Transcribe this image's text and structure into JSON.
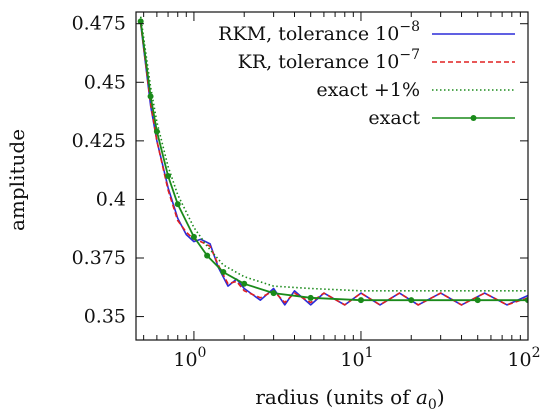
{
  "chart_data": {
    "type": "line",
    "title": "",
    "xlabel_main": "radius (units of ",
    "xlabel_symbol": "a",
    "xlabel_sub": "0",
    "xlabel_close": ")",
    "ylabel": "amplitude",
    "xscale": "log",
    "xlim": [
      0.45,
      100
    ],
    "ylim": [
      0.34,
      0.48
    ],
    "grid": false,
    "legend_position": "top-right",
    "x_ticks": [
      {
        "value": 1,
        "base": "10",
        "exp": "0"
      },
      {
        "value": 10,
        "base": "10",
        "exp": "1"
      },
      {
        "value": 100,
        "base": "10",
        "exp": "2"
      }
    ],
    "y_ticks": [
      {
        "value": 0.35,
        "label": "0.35"
      },
      {
        "value": 0.375,
        "label": "0.375"
      },
      {
        "value": 0.4,
        "label": "0.4"
      },
      {
        "value": 0.425,
        "label": "0.425"
      },
      {
        "value": 0.45,
        "label": "0.45"
      },
      {
        "value": 0.475,
        "label": "0.475"
      }
    ],
    "series": [
      {
        "name_main": "RKM, tolerance 10",
        "name_exp": "−8",
        "color": "#2b2bd9",
        "style": "solid",
        "points": [
          [
            0.48,
            0.475
          ],
          [
            0.55,
            0.44
          ],
          [
            0.6,
            0.425
          ],
          [
            0.7,
            0.405
          ],
          [
            0.8,
            0.392
          ],
          [
            0.9,
            0.385
          ],
          [
            1.0,
            0.382
          ],
          [
            1.1,
            0.383
          ],
          [
            1.25,
            0.381
          ],
          [
            1.4,
            0.371
          ],
          [
            1.6,
            0.363
          ],
          [
            1.8,
            0.366
          ],
          [
            2.0,
            0.362
          ],
          [
            2.5,
            0.357
          ],
          [
            3,
            0.362
          ],
          [
            3.5,
            0.355
          ],
          [
            4,
            0.361
          ],
          [
            5,
            0.355
          ],
          [
            6,
            0.36
          ],
          [
            8,
            0.355
          ],
          [
            10,
            0.36
          ],
          [
            13,
            0.355
          ],
          [
            17,
            0.36
          ],
          [
            22,
            0.355
          ],
          [
            30,
            0.36
          ],
          [
            40,
            0.355
          ],
          [
            55,
            0.36
          ],
          [
            75,
            0.355
          ],
          [
            100,
            0.359
          ]
        ]
      },
      {
        "name_main": "KR, tolerance 10",
        "name_exp": "−7",
        "color": "#e02020",
        "style": "dashed",
        "points": [
          [
            0.48,
            0.475
          ],
          [
            0.55,
            0.441
          ],
          [
            0.6,
            0.425
          ],
          [
            0.7,
            0.404
          ],
          [
            0.8,
            0.391
          ],
          [
            0.9,
            0.386
          ],
          [
            1.0,
            0.383
          ],
          [
            1.1,
            0.382
          ],
          [
            1.25,
            0.38
          ],
          [
            1.4,
            0.372
          ],
          [
            1.6,
            0.364
          ],
          [
            1.8,
            0.365
          ],
          [
            2.0,
            0.361
          ],
          [
            2.5,
            0.358
          ],
          [
            3,
            0.361
          ],
          [
            3.5,
            0.356
          ],
          [
            4,
            0.36
          ],
          [
            5,
            0.356
          ],
          [
            6,
            0.36
          ],
          [
            8,
            0.355
          ],
          [
            10,
            0.36
          ],
          [
            13,
            0.355
          ],
          [
            17,
            0.36
          ],
          [
            22,
            0.355
          ],
          [
            30,
            0.36
          ],
          [
            40,
            0.355
          ],
          [
            55,
            0.36
          ],
          [
            75,
            0.355
          ],
          [
            100,
            0.358
          ]
        ]
      },
      {
        "name_main": "exact +1%",
        "name_exp": "",
        "color": "#1a8a1a",
        "style": "dotted",
        "points": [
          [
            0.48,
            0.478
          ],
          [
            0.55,
            0.448
          ],
          [
            0.6,
            0.433
          ],
          [
            0.7,
            0.414
          ],
          [
            0.8,
            0.402
          ],
          [
            1.0,
            0.388
          ],
          [
            1.2,
            0.38
          ],
          [
            1.5,
            0.372
          ],
          [
            2.0,
            0.367
          ],
          [
            3,
            0.363
          ],
          [
            5,
            0.362
          ],
          [
            10,
            0.361
          ],
          [
            20,
            0.361
          ],
          [
            50,
            0.361
          ],
          [
            100,
            0.361
          ]
        ]
      },
      {
        "name_main": "exact",
        "name_exp": "",
        "color": "#1a8a1a",
        "style": "solid-markers",
        "points": [
          [
            0.48,
            0.476
          ],
          [
            0.55,
            0.444
          ],
          [
            0.6,
            0.429
          ],
          [
            0.7,
            0.41
          ],
          [
            0.8,
            0.398
          ],
          [
            1.0,
            0.384
          ],
          [
            1.2,
            0.376
          ],
          [
            1.5,
            0.369
          ],
          [
            2.0,
            0.364
          ],
          [
            3,
            0.36
          ],
          [
            5,
            0.358
          ],
          [
            10,
            0.357
          ],
          [
            20,
            0.357
          ],
          [
            50,
            0.357
          ],
          [
            100,
            0.357
          ]
        ]
      }
    ]
  }
}
